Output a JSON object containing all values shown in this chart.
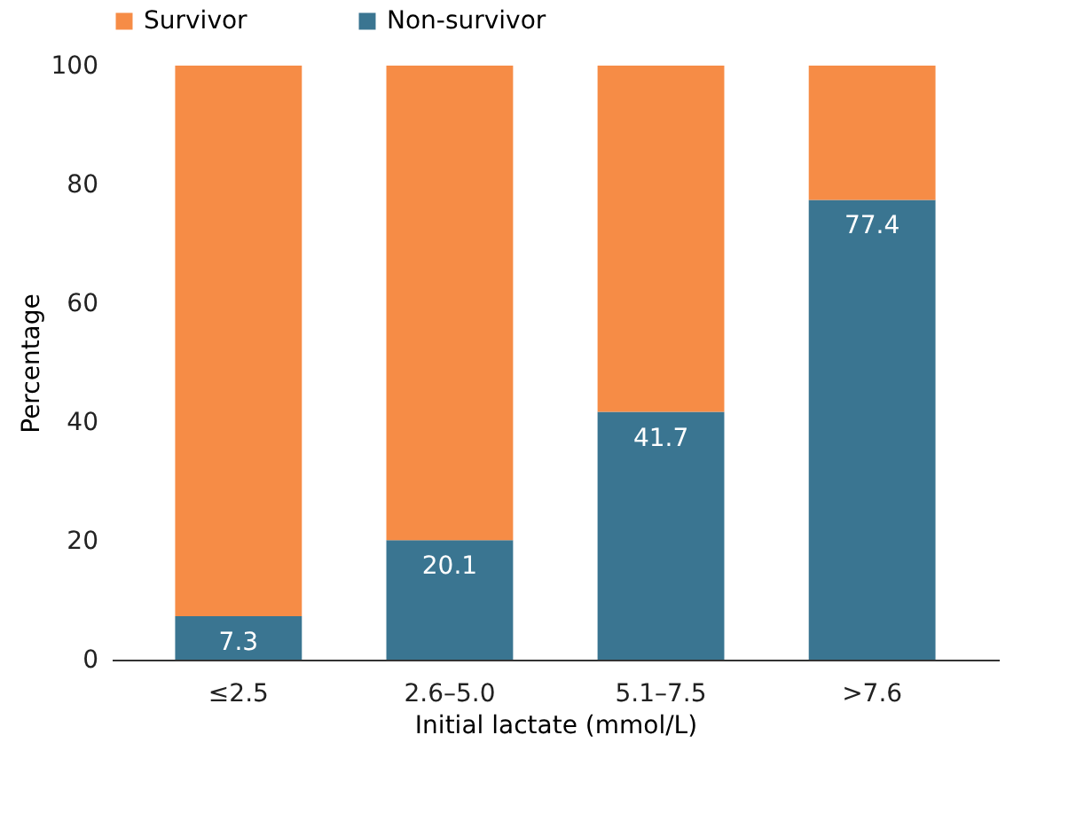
{
  "chart_data": {
    "type": "bar",
    "stacked": true,
    "xlabel": "Initial lactate (mmol/L)",
    "ylabel": "Percentage",
    "categories": [
      "≤2.5",
      "2.6–5.0",
      "5.1–7.5",
      ">7.6"
    ],
    "series": [
      {
        "name": "Non-survivor",
        "color": "#3a7591",
        "values": [
          7.3,
          20.1,
          41.7,
          77.4
        ],
        "value_labels": [
          "7.3",
          "20.1",
          "41.7",
          "77.4"
        ]
      },
      {
        "name": "Survivor",
        "color": "#f68c46",
        "values": [
          92.7,
          79.9,
          58.3,
          22.6
        ]
      }
    ],
    "ylim": [
      0,
      100
    ],
    "yticks": [
      0,
      20,
      40,
      60,
      80,
      100
    ],
    "grid": false,
    "legend": "top"
  }
}
